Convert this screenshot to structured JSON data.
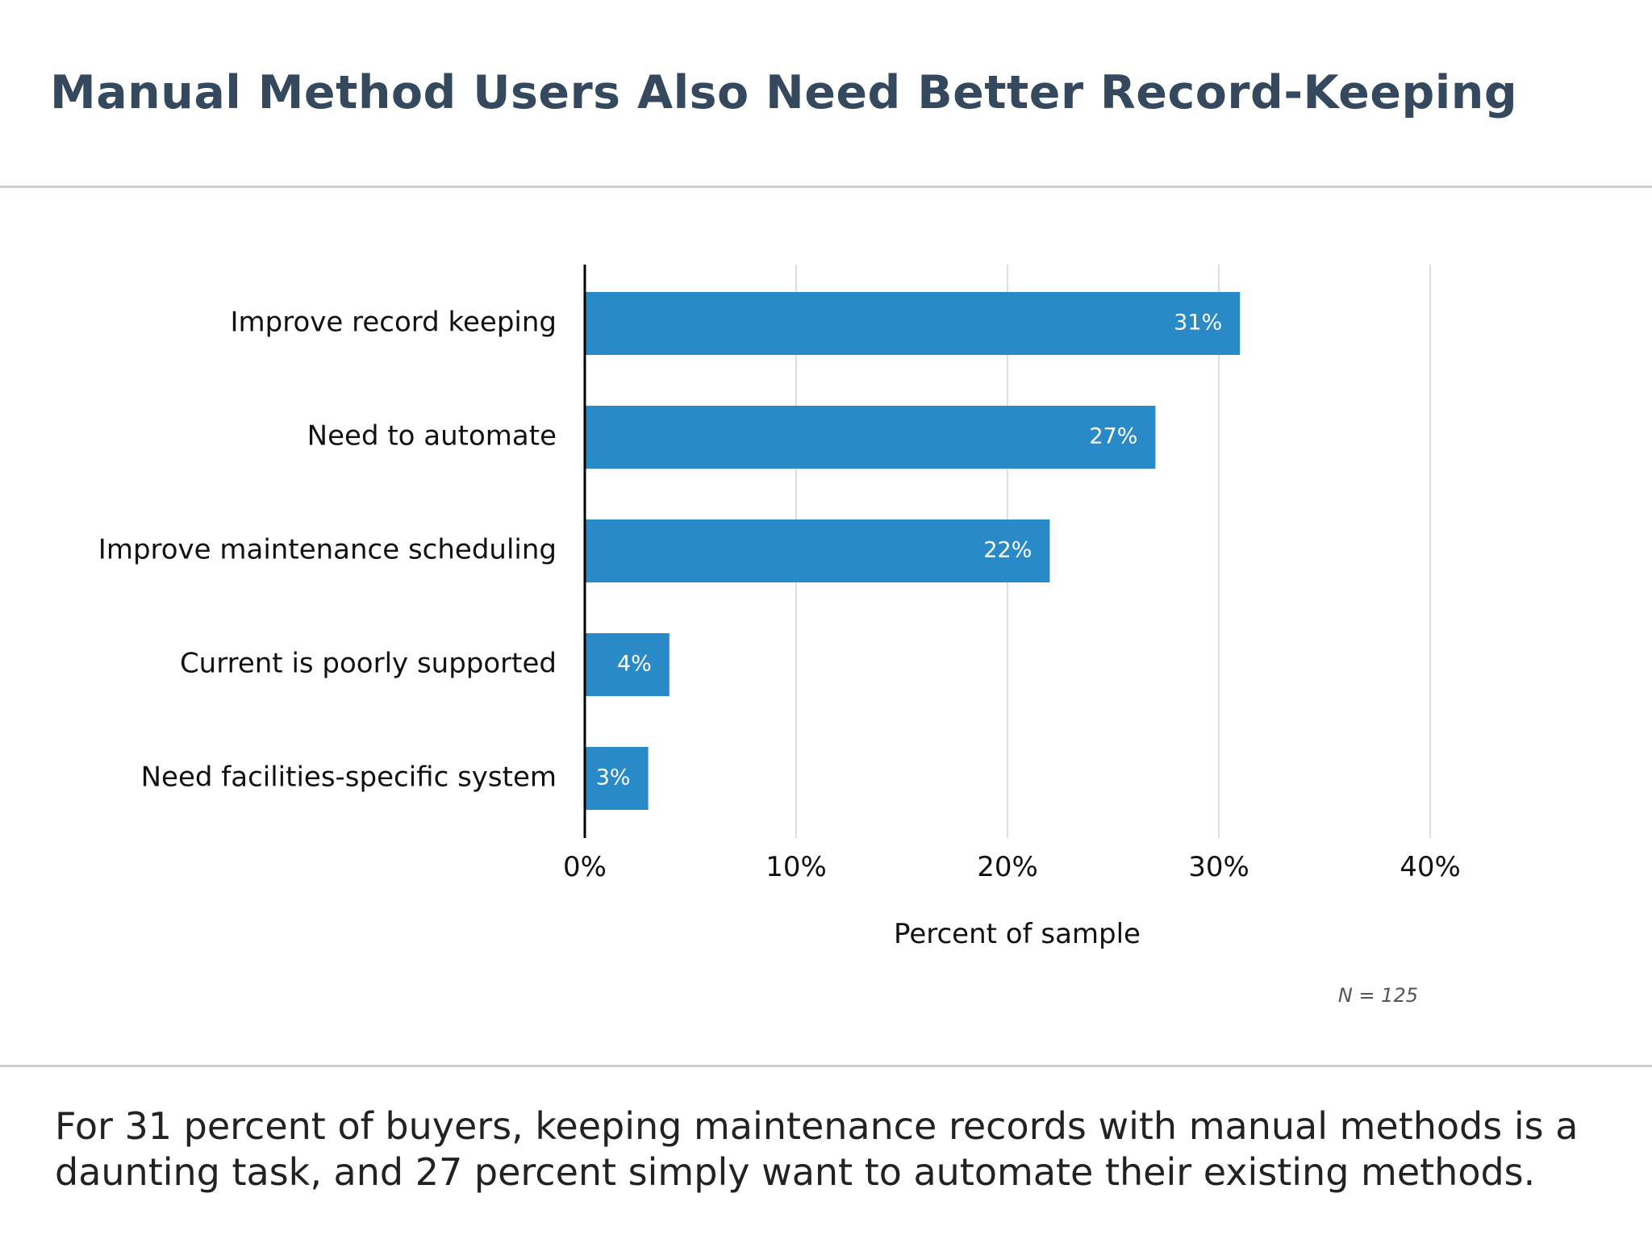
{
  "title": "Manual Method Users Also Need Better Record-Keeping",
  "caption": "For 31 percent of buyers, keeping maintenance records with manual methods is a daunting task, and 27 percent simply want to automate their existing methods.",
  "note": "N = 125",
  "colors": {
    "title": "#34495e",
    "bar": "#2a8ac8",
    "bar_label": "#ffffff",
    "grid": "#dddddd",
    "axis": "#000000",
    "rule": "#cfcfcf"
  },
  "chart_data": {
    "type": "bar",
    "orientation": "horizontal",
    "categories": [
      "Improve record keeping",
      "Need to automate",
      "Improve maintenance scheduling",
      "Current is poorly supported",
      "Need facilities-specific system"
    ],
    "values": [
      31,
      27,
      22,
      4,
      3
    ],
    "value_labels": [
      "31%",
      "27%",
      "22%",
      "4%",
      "3%"
    ],
    "xlabel": "Percent of sample",
    "ylabel": "",
    "xlim": [
      0,
      40
    ],
    "xticks": [
      0,
      10,
      20,
      30,
      40
    ],
    "xtick_labels": [
      "0%",
      "10%",
      "20%",
      "30%",
      "40%"
    ],
    "grid": "vertical",
    "legend": "none"
  }
}
